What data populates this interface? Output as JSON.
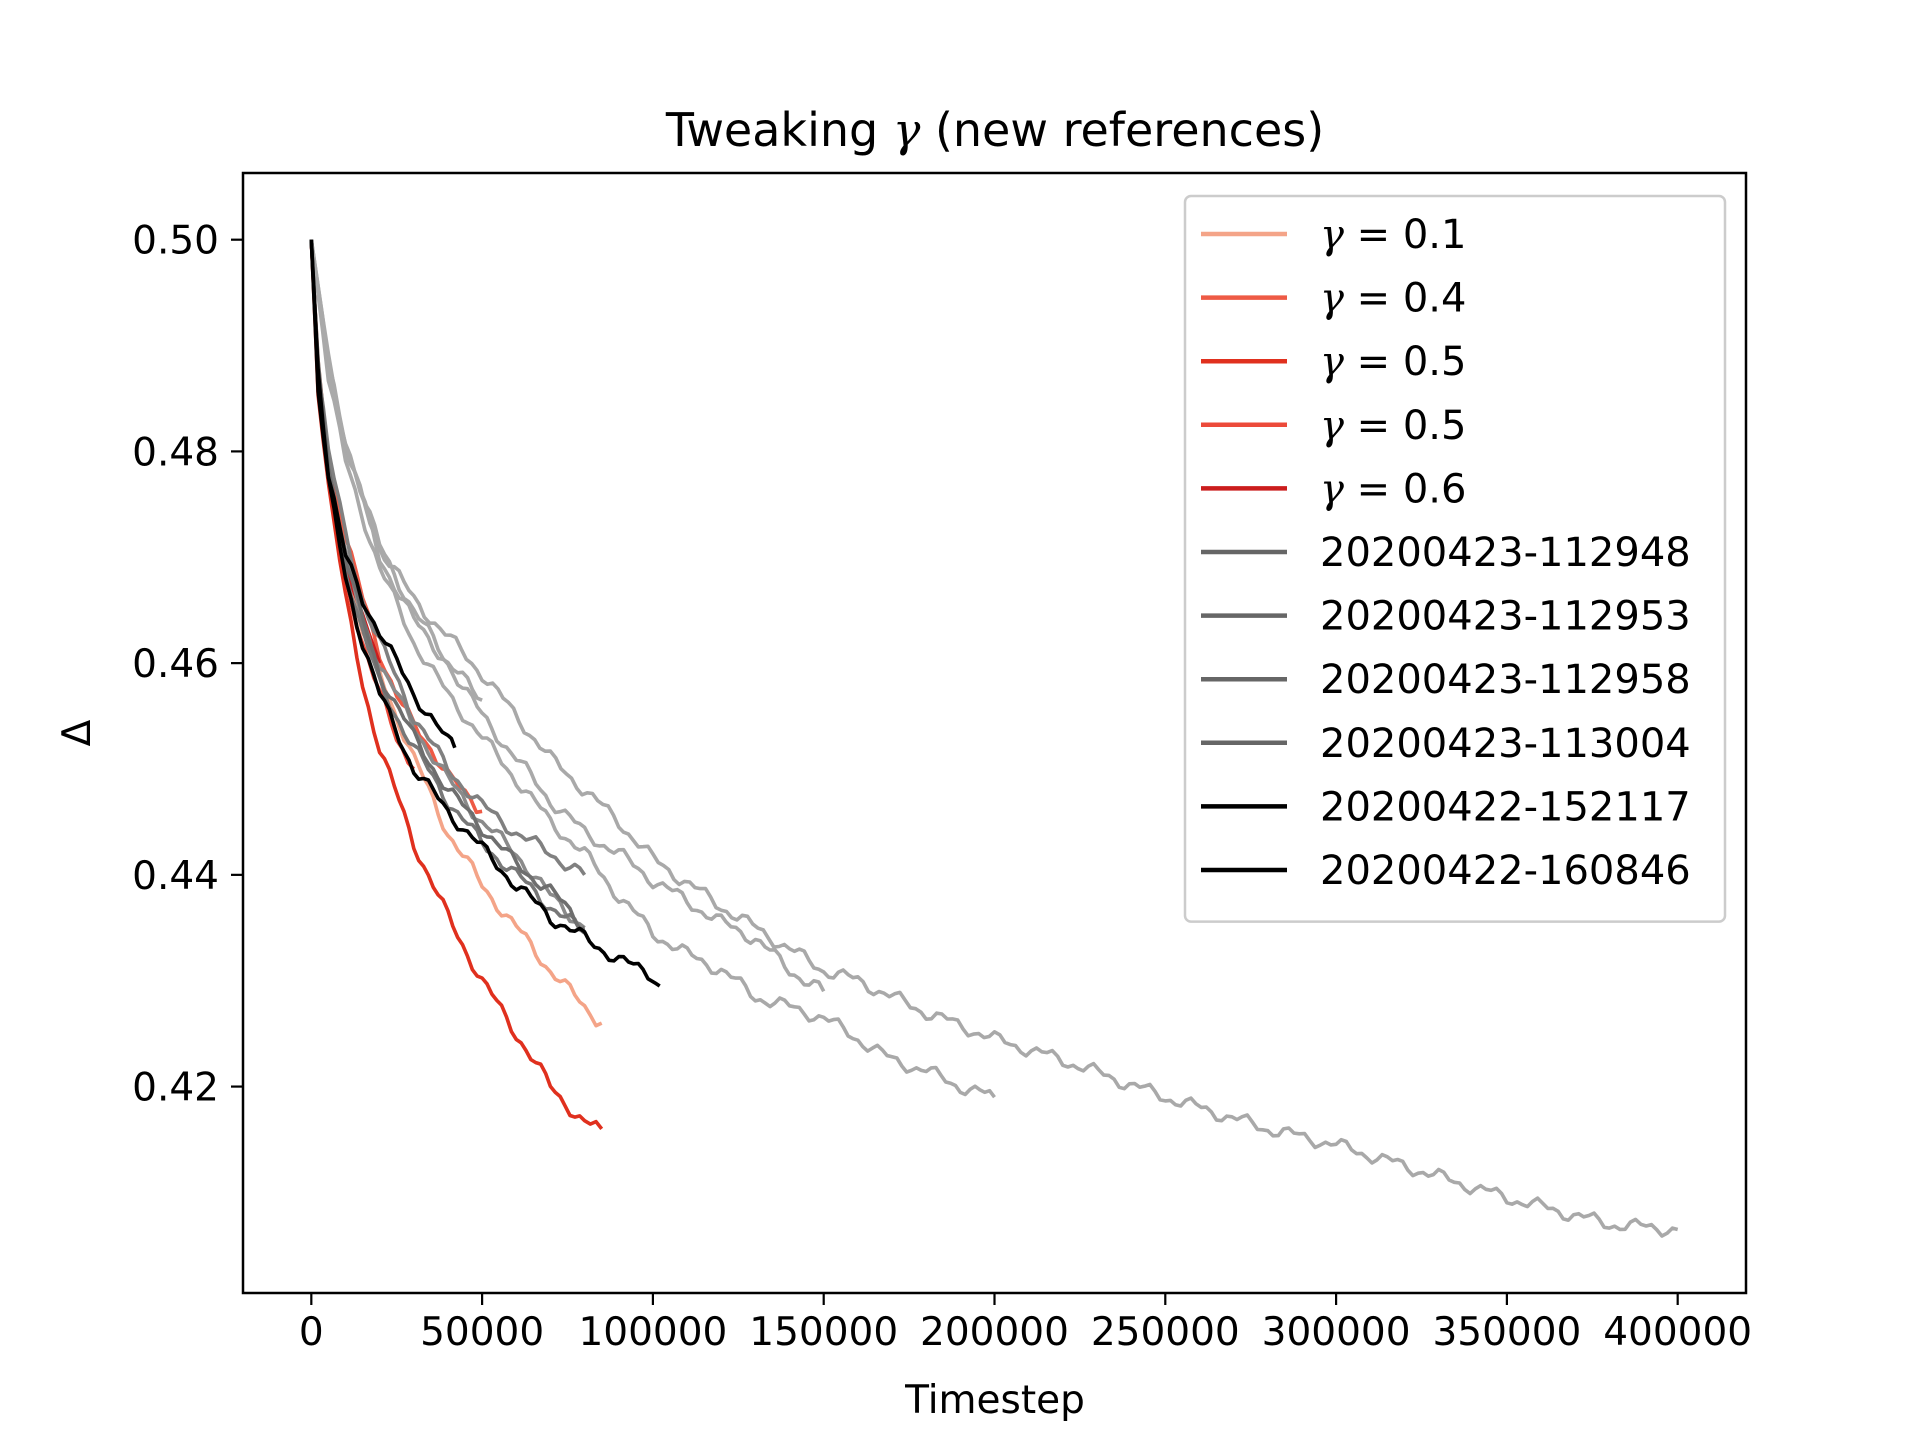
{
  "chart_data": {
    "type": "line",
    "title": "Tweaking γ (new references)",
    "title_prefix": "Tweaking ",
    "title_symbol": "γ",
    "title_suffix": " (new references)",
    "xlabel": "Timestep",
    "ylabel": "Δ",
    "xlim": [
      -20000,
      420000
    ],
    "ylim": [
      0.4005,
      0.5063
    ],
    "xticks": [
      0,
      50000,
      100000,
      150000,
      200000,
      250000,
      300000,
      350000,
      400000
    ],
    "xtick_labels": [
      "0",
      "50000",
      "100000",
      "150000",
      "200000",
      "250000",
      "300000",
      "350000",
      "400000"
    ],
    "yticks": [
      0.42,
      0.44,
      0.46,
      0.48,
      0.5
    ],
    "ytick_labels": [
      "0.42",
      "0.44",
      "0.46",
      "0.48",
      "0.50"
    ],
    "legend_position": "top-right",
    "series": [
      {
        "name": "γ = 0.1",
        "symbol": "γ",
        "eq": " = ",
        "value": "0.1",
        "color": "#f4a488",
        "x": [
          0,
          2000,
          5000,
          10000,
          15000,
          20000,
          30000,
          40000,
          50000,
          60000,
          70000,
          80000,
          85000
        ],
        "y": [
          0.5,
          0.488,
          0.479,
          0.469,
          0.463,
          0.459,
          0.451,
          0.444,
          0.439,
          0.435,
          0.431,
          0.4275,
          0.426
        ]
      },
      {
        "name": "γ = 0.4",
        "symbol": "γ",
        "eq": " = ",
        "value": "0.4",
        "color": "#ee5a45",
        "x": [
          0,
          2000,
          5000,
          10000,
          15000,
          20000,
          25000,
          30000,
          35000,
          40000,
          45000,
          50000
        ],
        "y": [
          0.5,
          0.488,
          0.48,
          0.472,
          0.466,
          0.461,
          0.457,
          0.454,
          0.452,
          0.4495,
          0.4475,
          0.446
        ]
      },
      {
        "name": "γ = 0.5",
        "symbol": "γ",
        "eq": " = ",
        "value": "0.5",
        "color": "#e0301e",
        "x": [
          0,
          2000,
          5000,
          10000,
          15000,
          20000,
          30000,
          40000,
          50000,
          60000,
          70000,
          80000,
          85000
        ],
        "y": [
          0.5,
          0.486,
          0.477,
          0.466,
          0.458,
          0.452,
          0.443,
          0.436,
          0.43,
          0.425,
          0.42,
          0.4165,
          0.416
        ]
      },
      {
        "name": "γ = 0.5",
        "symbol": "γ",
        "eq": " = ",
        "value": "0.5",
        "color": "#ec4a3a",
        "x": [
          0,
          2000,
          5000,
          10000,
          15000,
          20000,
          25000,
          30000
        ],
        "y": [
          0.5,
          0.487,
          0.478,
          0.468,
          0.462,
          0.457,
          0.453,
          0.45
        ]
      },
      {
        "name": "γ = 0.6",
        "symbol": "γ",
        "eq": " = ",
        "value": "0.6",
        "color": "#cb1d1d",
        "x": [
          0,
          2000,
          5000,
          10000,
          15000,
          20000
        ],
        "y": [
          0.5,
          0.487,
          0.479,
          0.47,
          0.464,
          0.46
        ]
      },
      {
        "name": "20200423-112948",
        "color": "#a9a9a9",
        "x": [
          0,
          5000,
          10000,
          20000,
          30000,
          50000,
          70000,
          90000,
          100000,
          120000,
          140000,
          150000,
          160000,
          180000,
          200000,
          220000,
          250000,
          280000,
          300000,
          330000,
          350000,
          380000,
          400000
        ],
        "y": [
          0.5,
          0.489,
          0.48,
          0.471,
          0.466,
          0.459,
          0.451,
          0.445,
          0.4415,
          0.437,
          0.433,
          0.431,
          0.43,
          0.427,
          0.4245,
          0.4225,
          0.419,
          0.416,
          0.4145,
          0.4115,
          0.4095,
          0.407,
          0.4065
        ]
      },
      {
        "name": "20200423-112953",
        "color": "#a9a9a9",
        "x": [
          0,
          5000,
          10000,
          20000,
          30000,
          40000,
          50000,
          60000,
          70000,
          80000,
          90000,
          100000,
          110000,
          120000,
          130000,
          140000,
          150000,
          160000,
          170000,
          180000,
          190000,
          200000
        ],
        "y": [
          0.5,
          0.487,
          0.479,
          0.469,
          0.462,
          0.457,
          0.453,
          0.449,
          0.445,
          0.442,
          0.438,
          0.4345,
          0.4325,
          0.431,
          0.4285,
          0.4275,
          0.4265,
          0.4245,
          0.4225,
          0.4215,
          0.42,
          0.419
        ]
      },
      {
        "name": "20200423-112958",
        "color": "#a9a9a9",
        "x": [
          0,
          5000,
          10000,
          20000,
          30000,
          40000,
          50000,
          60000,
          70000,
          80000,
          90000,
          100000,
          110000,
          120000,
          130000,
          140000,
          150000
        ],
        "y": [
          0.5,
          0.488,
          0.481,
          0.471,
          0.465,
          0.46,
          0.455,
          0.451,
          0.447,
          0.444,
          0.442,
          0.4395,
          0.4375,
          0.4355,
          0.434,
          0.431,
          0.429
        ]
      },
      {
        "name": "20200423-113004",
        "color": "#a9a9a9",
        "x": [
          0,
          5000,
          10000,
          20000,
          30000,
          40000,
          50000
        ],
        "y": [
          0.5,
          0.489,
          0.481,
          0.47,
          0.464,
          0.46,
          0.4565
        ]
      },
      {
        "name": "20200423-112948",
        "color": "#8a8a8a",
        "x": [
          0,
          2000,
          5000,
          10000,
          15000,
          20000,
          30000,
          40000,
          50000,
          60000,
          70000,
          80000
        ],
        "y": [
          0.5,
          0.487,
          0.479,
          0.47,
          0.464,
          0.46,
          0.454,
          0.449,
          0.445,
          0.442,
          0.438,
          0.435
        ]
      },
      {
        "name": "20200423-112953",
        "color": "#808080",
        "x": [
          0,
          2000,
          5000,
          10000,
          15000,
          20000,
          30000,
          40000,
          50000,
          60000,
          70000,
          80000
        ],
        "y": [
          0.5,
          0.488,
          0.48,
          0.472,
          0.466,
          0.462,
          0.455,
          0.45,
          0.4465,
          0.444,
          0.442,
          0.44
        ]
      },
      {
        "name": "20200423-112958",
        "color": "#777777",
        "x": [
          0,
          2000,
          5000,
          10000,
          15000,
          20000,
          30000,
          40000,
          50000,
          60000,
          70000,
          80000
        ],
        "y": [
          0.5,
          0.487,
          0.478,
          0.469,
          0.463,
          0.458,
          0.452,
          0.447,
          0.443,
          0.44,
          0.437,
          0.4345
        ]
      },
      {
        "name": "20200423-113004",
        "color": "#6e6e6e",
        "x": [
          0,
          2000,
          5000,
          10000,
          15000,
          20000,
          30000,
          40000,
          50000,
          60000,
          70000,
          80000
        ],
        "y": [
          0.5,
          0.488,
          0.479,
          0.47,
          0.464,
          0.459,
          0.453,
          0.448,
          0.4445,
          0.441,
          0.4385,
          0.435
        ]
      },
      {
        "name": "20200422-152117",
        "color": "#000000",
        "x": [
          0,
          2000,
          5000,
          10000,
          15000,
          20000,
          25000,
          30000,
          35000,
          40000,
          42000
        ],
        "y": [
          0.5,
          0.488,
          0.478,
          0.47,
          0.466,
          0.463,
          0.46,
          0.457,
          0.455,
          0.4525,
          0.452
        ]
      },
      {
        "name": "20200422-160846",
        "color": "#000000",
        "x": [
          0,
          2000,
          5000,
          10000,
          15000,
          20000,
          30000,
          40000,
          50000,
          60000,
          70000,
          80000,
          90000,
          100000,
          102000
        ],
        "y": [
          0.5,
          0.486,
          0.477,
          0.468,
          0.462,
          0.457,
          0.45,
          0.446,
          0.4425,
          0.439,
          0.436,
          0.434,
          0.432,
          0.4305,
          0.4295
        ]
      }
    ],
    "legend_entries": [
      {
        "kind": "math",
        "symbol": "γ",
        "eq": " = ",
        "value": "0.1",
        "color": "#f4a488"
      },
      {
        "kind": "math",
        "symbol": "γ",
        "eq": " = ",
        "value": "0.4",
        "color": "#ee5a45"
      },
      {
        "kind": "math",
        "symbol": "γ",
        "eq": " = ",
        "value": "0.5",
        "color": "#e0301e"
      },
      {
        "kind": "math",
        "symbol": "γ",
        "eq": " = ",
        "value": "0.5",
        "color": "#ec4a3a"
      },
      {
        "kind": "math",
        "symbol": "γ",
        "eq": " = ",
        "value": "0.6",
        "color": "#cb1d1d"
      },
      {
        "kind": "text",
        "label": "20200423-112948",
        "color": "#666666"
      },
      {
        "kind": "text",
        "label": "20200423-112953",
        "color": "#666666"
      },
      {
        "kind": "text",
        "label": "20200423-112958",
        "color": "#666666"
      },
      {
        "kind": "text",
        "label": "20200423-113004",
        "color": "#666666"
      },
      {
        "kind": "text",
        "label": "20200422-152117",
        "color": "#000000"
      },
      {
        "kind": "text",
        "label": "20200422-160846",
        "color": "#000000"
      }
    ]
  }
}
